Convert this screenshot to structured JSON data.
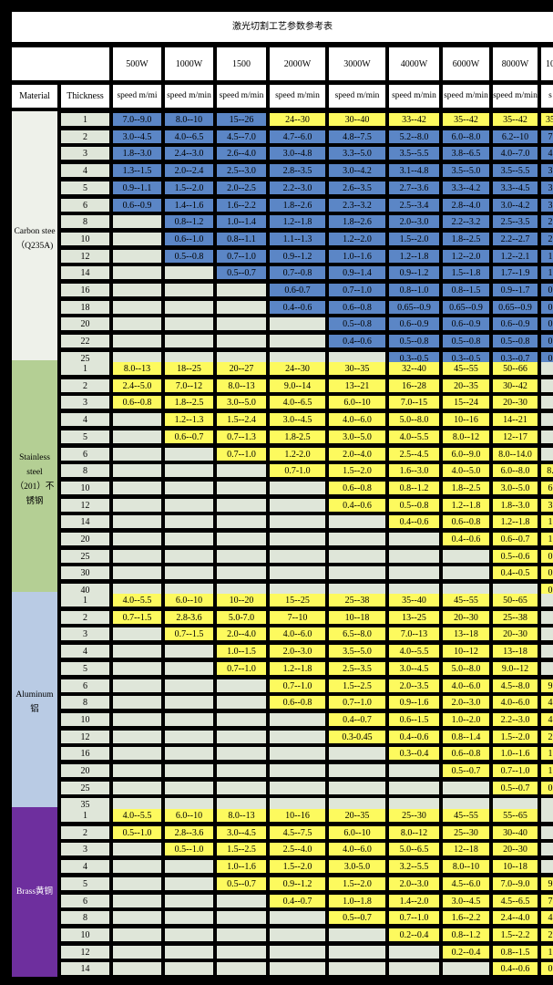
{
  "title": "激光切割工艺参数参考表",
  "powers": [
    "500W",
    "1000W",
    "1500",
    "2000W",
    "3000W",
    "4000W",
    "6000W",
    "8000W",
    "10"
  ],
  "header_row": {
    "material": "Material",
    "thickness": "Thickness",
    "speed": [
      "speed m/mi",
      "speed m/min",
      "speed m/min",
      "speed m/min",
      "speed m/min",
      "speed m/min",
      "speed m/min",
      "speed m/min",
      "s"
    ]
  },
  "colors": {
    "blue": "#5b86c6",
    "yellow": "#fdfa5e",
    "empty": "#dfe6d9",
    "thickness_bg": "#dfe6d9",
    "carbon_bg": "#eef1ea",
    "stainless_bg": "#b4cf94",
    "aluminum_bg": "#b9cbe4",
    "brass_bg": "#6e2f9e"
  },
  "groups": [
    {
      "material_lines": [
        "Carbon stee",
        "（Q235A)"
      ],
      "bg": "carbon_bg",
      "fill": "blue",
      "rows": [
        {
          "t": "1",
          "v": [
            "7.0--9.0",
            "8.0--10",
            "15--26",
            "24--30",
            "30--40",
            "33--42",
            "35--42",
            "35--42",
            "35"
          ],
          "y": [
            false,
            false,
            false,
            true,
            true,
            true,
            true,
            true,
            true
          ]
        },
        {
          "t": "2",
          "v": [
            "3.0--4.5",
            "4.0--6.5",
            "4.5--7.0",
            "4.7--6.0",
            "4.8--7.5",
            "5.2--8.0",
            "6.0--8.0",
            "6.2--10",
            "7"
          ]
        },
        {
          "t": "3",
          "v": [
            "1.8--3.0",
            "2.4--3.0",
            "2.6--4.0",
            "3.0--4.8",
            "3.3--5.0",
            "3.5--5.5",
            "3.8--6.5",
            "4.0--7.0",
            "4"
          ]
        },
        {
          "t": "4",
          "v": [
            "1.3--1.5",
            "2.0--2.4",
            "2.5--3.0",
            "2.8--3.5",
            "3.0--4.2",
            "3.1--4.8",
            "3.5--5.0",
            "3.5--5.5",
            "3"
          ]
        },
        {
          "t": "5",
          "v": [
            "0.9--1.1",
            "1.5--2.0",
            "2.0--2.5",
            "2.2--3.0",
            "2.6--3.5",
            "2.7--3.6",
            "3.3--4.2",
            "3.3--4.5",
            "3"
          ]
        },
        {
          "t": "6",
          "v": [
            "0.6--0.9",
            "1.4--1.6",
            "1.6--2.2",
            "1.8--2.6",
            "2.3--3.2",
            "2.5--3.4",
            "2.8--4.0",
            "3.0--4.2",
            "3"
          ]
        },
        {
          "t": "8",
          "v": [
            "",
            "0.8--1.2",
            "1.0--1.4",
            "1.2--1.8",
            "1.8--2.6",
            "2.0--3.0",
            "2.2--3.2",
            "2.5--3.5",
            "2"
          ]
        },
        {
          "t": "10",
          "v": [
            "",
            "0.6--1.0",
            "0.8--1.1",
            "1.1--1.3",
            "1.2--2.0",
            "1.5--2.0",
            "1.8--2.5",
            "2.2--2.7",
            "2"
          ]
        },
        {
          "t": "12",
          "v": [
            "",
            "0.5--0.8",
            "0.7--1.0",
            "0.9--1.2",
            "1.0--1.6",
            "1.2--1.8",
            "1.2--2.0",
            "1.2--2.1",
            "1"
          ]
        },
        {
          "t": "14",
          "v": [
            "",
            "",
            "0.5--0.7",
            "0.7--0.8",
            "0.9--1.4",
            "0.9--1.2",
            "1.5--1.8",
            "1.7--1.9",
            "1"
          ]
        },
        {
          "t": "16",
          "v": [
            "",
            "",
            "",
            "0.6-0.7",
            "0.7--1.0",
            "0.8--1.0",
            "0.8--1.5",
            "0.9--1.7",
            "0"
          ]
        },
        {
          "t": "18",
          "v": [
            "",
            "",
            "",
            "0.4--0.6",
            "0.6--0.8",
            "0.65--0.9",
            "0.65--0.9",
            "0.65--0.9",
            "0"
          ]
        },
        {
          "t": "20",
          "v": [
            "",
            "",
            "",
            "",
            "0.5--0.8",
            "0.6--0.9",
            "0.6--0.9",
            "0.6--0.9",
            "0"
          ]
        },
        {
          "t": "22",
          "v": [
            "",
            "",
            "",
            "",
            "0.4--0.6",
            "0.5--0.8",
            "0.5--0.8",
            "0.5--0.8",
            "0"
          ]
        },
        {
          "t": "25",
          "v": [
            "",
            "",
            "",
            "",
            "",
            "0.3--0.5",
            "0.3--0.5",
            "0.3--0.7",
            "0"
          ]
        }
      ]
    },
    {
      "material_lines": [
        "Stainless",
        "steel",
        "（201）不",
        "锈钢"
      ],
      "bg": "stainless_bg",
      "fill": "yellow",
      "rows": [
        {
          "t": "1",
          "v": [
            "8.0--13",
            "18--25",
            "20--27",
            "24--30",
            "30--35",
            "32--40",
            "45--55",
            "50--66",
            ""
          ]
        },
        {
          "t": "2",
          "v": [
            "2.4--5.0",
            "7.0--12",
            "8.0--13",
            "9.0--14",
            "13--21",
            "16--28",
            "20--35",
            "30--42",
            ""
          ]
        },
        {
          "t": "3",
          "v": [
            "0.6--0.8",
            "1.8--2.5",
            "3.0--5.0",
            "4.0--6.5",
            "6.0--10",
            "7.0--15",
            "15--24",
            "20--30",
            ""
          ]
        },
        {
          "t": "4",
          "v": [
            "",
            "1.2--1.3",
            "1.5--2.4",
            "3.0--4.5",
            "4.0--6.0",
            "5.0--8.0",
            "10--16",
            "14--21",
            ""
          ]
        },
        {
          "t": "5",
          "v": [
            "",
            "0.6--0.7",
            "0.7--1.3",
            "1.8-2.5",
            "3.0--5.0",
            "4.0--5.5",
            "8.0--12",
            "12--17",
            ""
          ]
        },
        {
          "t": "6",
          "v": [
            "",
            "",
            "0.7--1.0",
            "1.2-2.0",
            "2.0--4.0",
            "2.5--4.5",
            "6.0--9.0",
            "8.0--14.0",
            ""
          ]
        },
        {
          "t": "8",
          "v": [
            "",
            "",
            "",
            "0.7-1.0",
            "1.5--2.0",
            "1.6--3.0",
            "4.0--5.0",
            "6.0--8.0",
            "8."
          ]
        },
        {
          "t": "10",
          "v": [
            "",
            "",
            "",
            "",
            "0.6--0.8",
            "0.8--1.2",
            "1.8--2.5",
            "3.0--5.0",
            "6"
          ]
        },
        {
          "t": "12",
          "v": [
            "",
            "",
            "",
            "",
            "0.4--0.6",
            "0.5--0.8",
            "1.2--1.8",
            "1.8--3.0",
            "3"
          ]
        },
        {
          "t": "14",
          "v": [
            "",
            "",
            "",
            "",
            "",
            "0.4--0.6",
            "0.6--0.8",
            "1.2--1.8",
            "1"
          ]
        },
        {
          "t": "20",
          "v": [
            "",
            "",
            "",
            "",
            "",
            "",
            "0.4--0.6",
            "0.6--0.7",
            "1"
          ]
        },
        {
          "t": "25",
          "v": [
            "",
            "",
            "",
            "",
            "",
            "",
            "",
            "0.5--0.6",
            "0"
          ]
        },
        {
          "t": "30",
          "v": [
            "",
            "",
            "",
            "",
            "",
            "",
            "",
            "0.4--0.5",
            "0"
          ]
        },
        {
          "t": "40",
          "v": [
            "",
            "",
            "",
            "",
            "",
            "",
            "",
            "",
            "0"
          ]
        }
      ]
    },
    {
      "material_lines": [
        "Aluminum",
        "铝"
      ],
      "bg": "aluminum_bg",
      "fill": "yellow",
      "rows": [
        {
          "t": "1",
          "v": [
            "4.0--5.5",
            "6.0--10",
            "10--20",
            "15--25",
            "25--38",
            "35--40",
            "45--55",
            "50--65",
            ""
          ]
        },
        {
          "t": "2",
          "v": [
            "0.7--1.5",
            "2.8-3.6",
            "5.0-7.0",
            "7--10",
            "10--18",
            "13--25",
            "20--30",
            "25--38",
            ""
          ]
        },
        {
          "t": "3",
          "v": [
            "",
            "0.7--1.5",
            "2.0--4.0",
            "4.0--6.0",
            "6.5--8.0",
            "7.0--13",
            "13--18",
            "20--30",
            ""
          ]
        },
        {
          "t": "4",
          "v": [
            "",
            "",
            "1.0--1.5",
            "2.0--3.0",
            "3.5--5.0",
            "4.0--5.5",
            "10--12",
            "13--18",
            ""
          ]
        },
        {
          "t": "5",
          "v": [
            "",
            "",
            "0.7--1.0",
            "1.2--1.8",
            "2.5--3.5",
            "3.0--4.5",
            "5.0--8.0",
            "9.0--12",
            ""
          ]
        },
        {
          "t": "6",
          "v": [
            "",
            "",
            "",
            "0.7--1.0",
            "1.5--2.5",
            "2.0--3.5",
            "4.0--6.0",
            "4.5--8.0",
            "9"
          ]
        },
        {
          "t": "8",
          "v": [
            "",
            "",
            "",
            "0.6--0.8",
            "0.7--1.0",
            "0.9--1.6",
            "2.0--3.0",
            "4.0--6.0",
            "4"
          ]
        },
        {
          "t": "10",
          "v": [
            "",
            "",
            "",
            "",
            "0.4--0.7",
            "0.6--1.5",
            "1.0--2.0",
            "2.2--3.0",
            "4"
          ]
        },
        {
          "t": "12",
          "v": [
            "",
            "",
            "",
            "",
            "0.3-0.45",
            "0.4--0.6",
            "0.8--1.4",
            "1.5--2.0",
            "2"
          ]
        },
        {
          "t": "16",
          "v": [
            "",
            "",
            "",
            "",
            "",
            "0.3--0.4",
            "0.6--0.8",
            "1.0--1.6",
            "1"
          ]
        },
        {
          "t": "20",
          "v": [
            "",
            "",
            "",
            "",
            "",
            "",
            "0.5--0.7",
            "0.7--1.0",
            "1"
          ]
        },
        {
          "t": "25",
          "v": [
            "",
            "",
            "",
            "",
            "",
            "",
            "",
            "0.5--0.7",
            "0"
          ]
        },
        {
          "t": "35",
          "v": [
            "",
            "",
            "",
            "",
            "",
            "",
            "",
            "",
            ""
          ]
        }
      ]
    },
    {
      "material_lines": [
        "Brass黄铜"
      ],
      "bg": "brass_bg",
      "fill": "yellow",
      "rows": [
        {
          "t": "1",
          "v": [
            "4.0--5.5",
            "6.0--10",
            "8.0--13",
            "10--16",
            "20--35",
            "25--30",
            "45--55",
            "55--65",
            ""
          ]
        },
        {
          "t": "2",
          "v": [
            "0.5--1.0",
            "2.8--3.6",
            "3.0--4.5",
            "4.5--7.5",
            "6.0--10",
            "8.0--12",
            "25--30",
            "30--40",
            ""
          ]
        },
        {
          "t": "3",
          "v": [
            "",
            "0.5--1.0",
            "1.5--2.5",
            "2.5--4.0",
            "4.0--6.0",
            "5.0--6.5",
            "12--18",
            "20--30",
            ""
          ]
        },
        {
          "t": "4",
          "v": [
            "",
            "",
            "1.0--1.6",
            "1.5--2.0",
            "3.0-5.0",
            "3.2--5.5",
            "8.0--10",
            "10--18",
            ""
          ]
        },
        {
          "t": "5",
          "v": [
            "",
            "",
            "0.5--0.7",
            "0.9--1.2",
            "1.5--2.0",
            "2.0--3.0",
            "4.5--6.0",
            "7.0--9.0",
            "9"
          ]
        },
        {
          "t": "6",
          "v": [
            "",
            "",
            "",
            "0.4--0.7",
            "1.0--1.8",
            "1.4--2.0",
            "3.0--4.5",
            "4.5--6.5",
            "7"
          ]
        },
        {
          "t": "8",
          "v": [
            "",
            "",
            "",
            "",
            "0.5--0.7",
            "0.7--1.0",
            "1.6--2.2",
            "2.4--4.0",
            "4"
          ]
        },
        {
          "t": "10",
          "v": [
            "",
            "",
            "",
            "",
            "",
            "0.2--0.4",
            "0.8--1.2",
            "1.5--2.2",
            "2"
          ]
        },
        {
          "t": "12",
          "v": [
            "",
            "",
            "",
            "",
            "",
            "",
            "0.2--0.4",
            "0.8--1.5",
            "1"
          ]
        },
        {
          "t": "14",
          "v": [
            "",
            "",
            "",
            "",
            "",
            "",
            "",
            "0.4--0.6",
            "0"
          ]
        }
      ]
    }
  ]
}
